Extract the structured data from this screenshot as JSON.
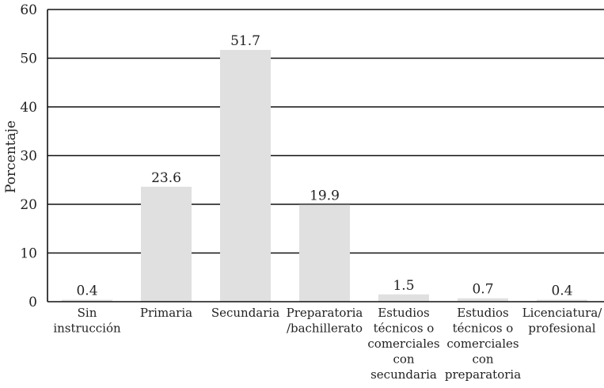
{
  "chart_data": {
    "type": "bar",
    "title": "",
    "xlabel": "",
    "ylabel": "Porcentaje",
    "ylim": [
      0,
      60
    ],
    "yticks": [
      0,
      10,
      20,
      30,
      40,
      50,
      60
    ],
    "grid": "horizontal",
    "categories": [
      [
        "Sin",
        "instrucción"
      ],
      [
        "Primaria"
      ],
      [
        "Secundaria"
      ],
      [
        "Preparatoria",
        "/bachillerato"
      ],
      [
        "Estudios",
        "técnicos o",
        "comerciales",
        "con",
        "secundaria"
      ],
      [
        "Estudios",
        "técnicos o",
        "comerciales",
        "con",
        "preparatoria"
      ],
      [
        "Licenciatura/",
        "profesional"
      ]
    ],
    "values": [
      0.4,
      23.6,
      51.7,
      19.9,
      1.5,
      0.7,
      0.4
    ],
    "data_labels": [
      "0.4",
      "23.6",
      "51.7",
      "19.9",
      "1.5",
      "0.7",
      "0.4"
    ],
    "colors": {
      "bar": "#e0e0e0",
      "grid": "#111111",
      "text": "#222222"
    }
  }
}
